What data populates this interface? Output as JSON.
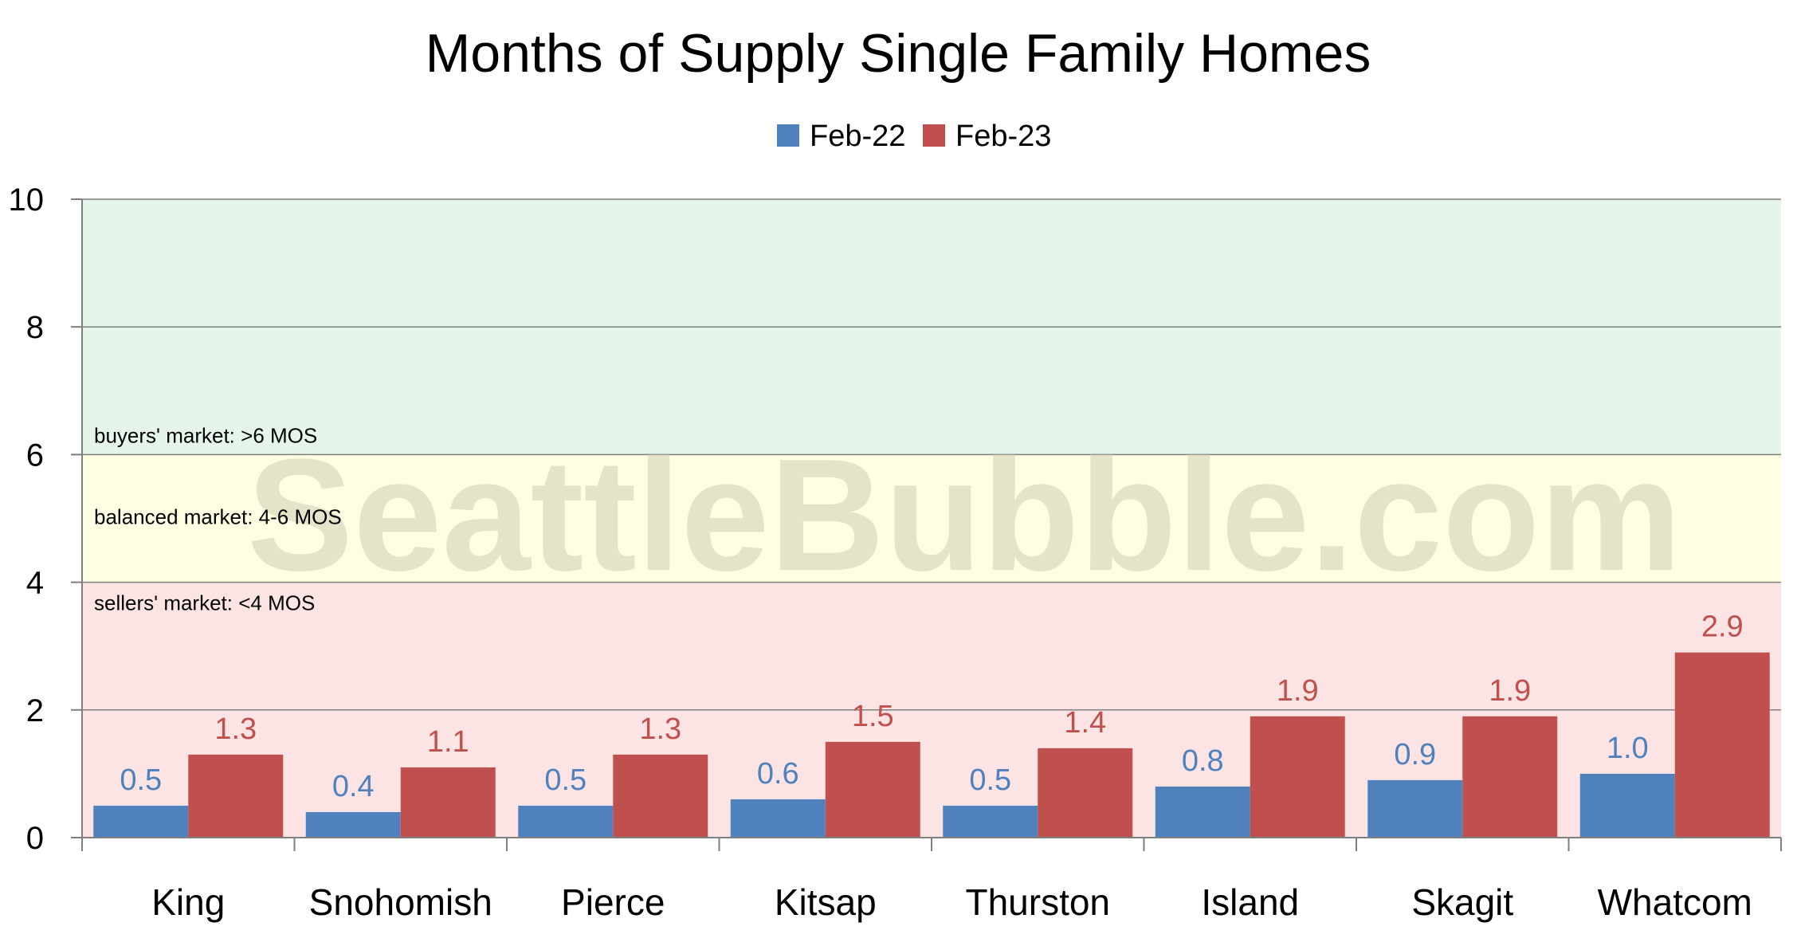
{
  "chart_data": {
    "type": "bar",
    "title": "Months of Supply Single Family Homes",
    "categories": [
      "King",
      "Snohomish",
      "Pierce",
      "Kitsap",
      "Thurston",
      "Island",
      "Skagit",
      "Whatcom"
    ],
    "series": [
      {
        "name": "Feb-22",
        "color": "#4f81bd",
        "values": [
          0.5,
          0.4,
          0.5,
          0.6,
          0.5,
          0.8,
          0.9,
          1.0
        ],
        "labels": [
          "0.5",
          "0.4",
          "0.5",
          "0.6",
          "0.5",
          "0.8",
          "0.9",
          "1.0"
        ]
      },
      {
        "name": "Feb-23",
        "color": "#c0504d",
        "values": [
          1.3,
          1.1,
          1.3,
          1.5,
          1.4,
          1.9,
          1.9,
          2.9
        ],
        "labels": [
          "1.3",
          "1.1",
          "1.3",
          "1.5",
          "1.4",
          "1.9",
          "1.9",
          "2.9"
        ]
      }
    ],
    "ylim": [
      0,
      10
    ],
    "yticks": [
      0,
      2,
      4,
      6,
      8,
      10
    ],
    "grid": true,
    "legend": "top-center",
    "zones": [
      {
        "from": 0,
        "to": 4,
        "color": "#fde4e4",
        "label": "sellers' market: <4 MOS"
      },
      {
        "from": 4,
        "to": 6,
        "color": "#fefee3",
        "label": "balanced market: 4-6 MOS"
      },
      {
        "from": 6,
        "to": 10,
        "color": "#e5f5ea",
        "label": "buyers' market: >6 MOS"
      }
    ],
    "watermark": "SeattleBubble.com"
  }
}
